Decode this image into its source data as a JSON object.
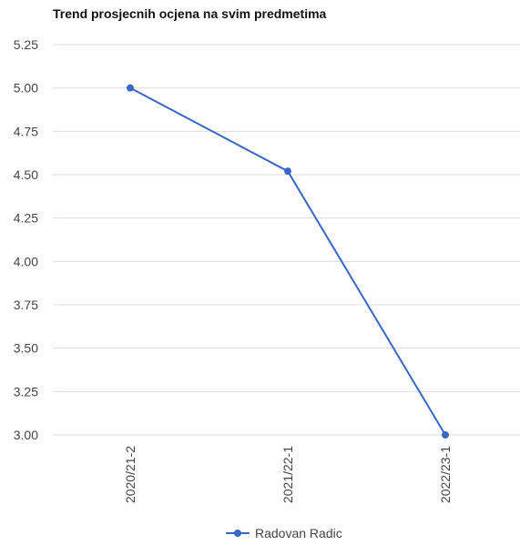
{
  "chart_data": {
    "type": "line",
    "title": "Trend prosjecnih ocjena na svim predmetima",
    "xlabel": "",
    "ylabel": "",
    "categories": [
      "2020/21-2",
      "2021/22-1",
      "2022/23-1"
    ],
    "series": [
      {
        "name": "Radovan Radic",
        "values": [
          5.0,
          4.52,
          3.0
        ],
        "color": "#3a66c4"
      }
    ],
    "ylim": [
      3.0,
      5.25
    ],
    "yticks": [
      "5.25",
      "5.00",
      "4.75",
      "4.50",
      "4.25",
      "4.00",
      "3.75",
      "3.50",
      "3.25",
      "3.00"
    ],
    "grid": true,
    "legend_position": "bottom"
  }
}
